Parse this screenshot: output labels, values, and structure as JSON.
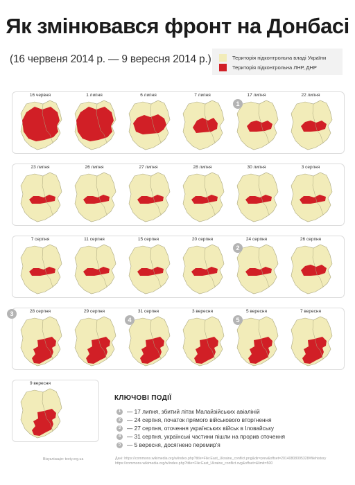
{
  "title": "Як змінювався фронт на Донбасі",
  "subtitle": "(16 червеня 2014 р. — 9 вересня 2014 р.)",
  "colors": {
    "ukraine_controlled": "#f2ecb9",
    "separatist_controlled": "#d11f26",
    "border": "#a9a67e",
    "badge": "#b4b4b4"
  },
  "legend": [
    {
      "label": "Територія підконтрольна владі України",
      "color": "#f2ecb9"
    },
    {
      "label": "Територія підконтрольна ЛНР, ДНР",
      "color": "#d11f26"
    }
  ],
  "rows": [
    {
      "maps": [
        {
          "date": "16 червня",
          "level": 9
        },
        {
          "date": "1 липня",
          "level": 9
        },
        {
          "date": "6 липня",
          "level": 7
        },
        {
          "date": "7 липня",
          "level": 5
        },
        {
          "date": "17 липня",
          "level": 4,
          "badge": "1"
        },
        {
          "date": "22 липня",
          "level": 4
        }
      ]
    },
    {
      "maps": [
        {
          "date": "23 липня",
          "level": 3
        },
        {
          "date": "26 липня",
          "level": 3
        },
        {
          "date": "27 липня",
          "level": 3
        },
        {
          "date": "28 липня",
          "level": 3
        },
        {
          "date": "30 липня",
          "level": 3
        },
        {
          "date": "3 серпня",
          "level": 3
        }
      ]
    },
    {
      "maps": [
        {
          "date": "7 серпня",
          "level": 3
        },
        {
          "date": "11 серпня",
          "level": 3
        },
        {
          "date": "15 серпня",
          "level": 3
        },
        {
          "date": "20 серпня",
          "level": 3
        },
        {
          "date": "24 серпня",
          "level": 3,
          "badge": "2"
        },
        {
          "date": "26 серпня",
          "level": 4
        }
      ]
    },
    {
      "row_badge": "3",
      "maps": [
        {
          "date": "28 серпня",
          "level": 6
        },
        {
          "date": "29 серпня",
          "level": 6
        },
        {
          "date": "31 серпня",
          "level": 6,
          "badge": "4"
        },
        {
          "date": "3 вересня",
          "level": 6
        },
        {
          "date": "5 вересня",
          "level": 6,
          "badge": "5"
        },
        {
          "date": "7 вересня",
          "level": 6
        }
      ]
    },
    {
      "maps": [
        {
          "date": "9 вересня",
          "level": 6
        }
      ]
    }
  ],
  "events_title": "КЛЮЧОВІ ПОДІЇ",
  "events": [
    {
      "num": "1",
      "text": "— 17 липня, збитий літак Малайзійських авіаліній"
    },
    {
      "num": "2",
      "text": "— 24 серпня, початок прямого військового вторгнення"
    },
    {
      "num": "3",
      "text": "— 27 серпня, оточення українських військ в Іловайську"
    },
    {
      "num": "4",
      "text": "— 31 серпня, українські частини пішли на прорив оточення"
    },
    {
      "num": "5",
      "text": "— 5 вересня, досягнено перемир'я"
    }
  ],
  "credit": "Візуалізація: texty.org.ua",
  "sources": [
    "Дані: https://commons.wikimedia.org/w/index.php?title=File:East_Ukraine_conflict.png&dir=prev&offset=20140808095328#filehistory",
    "https://commons.wikimedia.org/w/index.php?title=File:East_Ukraine_conflict.svg&offset=&limit=500"
  ]
}
